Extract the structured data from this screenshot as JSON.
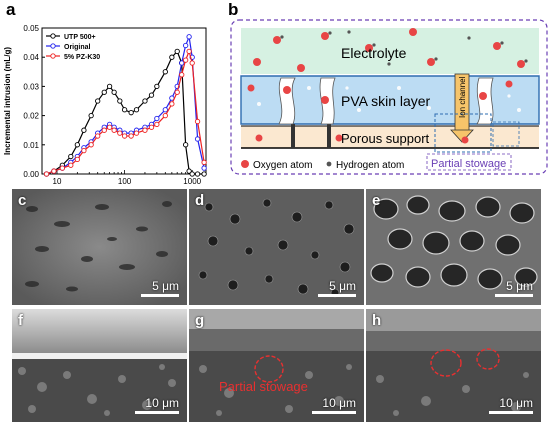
{
  "panels": {
    "a": "a",
    "b": "b",
    "c": "c",
    "d": "d",
    "e": "e",
    "f": "f",
    "g": "g",
    "h": "h"
  },
  "chart_data": {
    "type": "line",
    "xlabel": "Pore diameter (nm)",
    "ylabel": "Incremental intrusion (mL/g)",
    "xscale": "log",
    "xlim": [
      6,
      1600
    ],
    "ylim": [
      0,
      0.05
    ],
    "yticks": [
      "0.00",
      "0.01",
      "0.02",
      "0.03",
      "0.04",
      "0.05"
    ],
    "xticks": [
      "10",
      "100",
      "1000"
    ],
    "legend_position": "top-left",
    "series": [
      {
        "name": "UTP 500+",
        "color": "#000000",
        "x": [
          7,
          9,
          12,
          16,
          20,
          25,
          32,
          40,
          50,
          60,
          70,
          85,
          100,
          125,
          150,
          200,
          250,
          300,
          400,
          500,
          600,
          700,
          800,
          900,
          1000,
          1200,
          1500
        ],
        "y": [
          0.0,
          0.001,
          0.003,
          0.006,
          0.01,
          0.015,
          0.02,
          0.025,
          0.028,
          0.03,
          0.028,
          0.025,
          0.022,
          0.021,
          0.022,
          0.025,
          0.027,
          0.03,
          0.035,
          0.04,
          0.042,
          0.038,
          0.01,
          0.001,
          0.0,
          0.0,
          0.0
        ]
      },
      {
        "name": "Original",
        "color": "#2222ee",
        "x": [
          7,
          9,
          12,
          16,
          20,
          25,
          32,
          40,
          50,
          60,
          70,
          85,
          100,
          125,
          150,
          200,
          250,
          300,
          400,
          500,
          600,
          700,
          800,
          900,
          1000,
          1200,
          1500
        ],
        "y": [
          0.0,
          0.001,
          0.002,
          0.004,
          0.006,
          0.009,
          0.011,
          0.014,
          0.016,
          0.017,
          0.016,
          0.015,
          0.014,
          0.014,
          0.015,
          0.016,
          0.017,
          0.019,
          0.022,
          0.026,
          0.03,
          0.038,
          0.044,
          0.047,
          0.04,
          0.012,
          0.002
        ]
      },
      {
        "name": "5% PZ-K30",
        "color": "#ee2222",
        "x": [
          7,
          9,
          12,
          16,
          20,
          25,
          32,
          40,
          50,
          60,
          70,
          85,
          100,
          125,
          150,
          200,
          250,
          300,
          400,
          500,
          600,
          700,
          800,
          900,
          1000,
          1200,
          1500
        ],
        "y": [
          0.0,
          0.001,
          0.002,
          0.003,
          0.005,
          0.008,
          0.01,
          0.013,
          0.015,
          0.016,
          0.015,
          0.014,
          0.013,
          0.013,
          0.014,
          0.015,
          0.016,
          0.017,
          0.02,
          0.024,
          0.028,
          0.034,
          0.039,
          0.042,
          0.038,
          0.018,
          0.004
        ]
      }
    ]
  },
  "schematic": {
    "electrolyte": "Electrolyte",
    "skin": "PVA skin layer",
    "support": "Porous support",
    "channel": "Ion channel",
    "legend_oxygen": "Oxygen atom",
    "legend_hydrogen": "Hydrogen atom",
    "legend_stowage": "Partial stowage"
  },
  "sem": {
    "c_scale": "5 μm",
    "d_scale": "5 μm",
    "e_scale": "5 μm",
    "f_scale": "10 μm",
    "g_scale": "10 μm",
    "h_scale": "10 μm",
    "g_annotation": "Partial stowage"
  },
  "colors": {
    "electrolyte": "#cfeee0",
    "skin": "#bfdff4",
    "support": "#f2d2a8",
    "accent_purple": "#6a3fb5",
    "annotation_red": "#e83030"
  }
}
